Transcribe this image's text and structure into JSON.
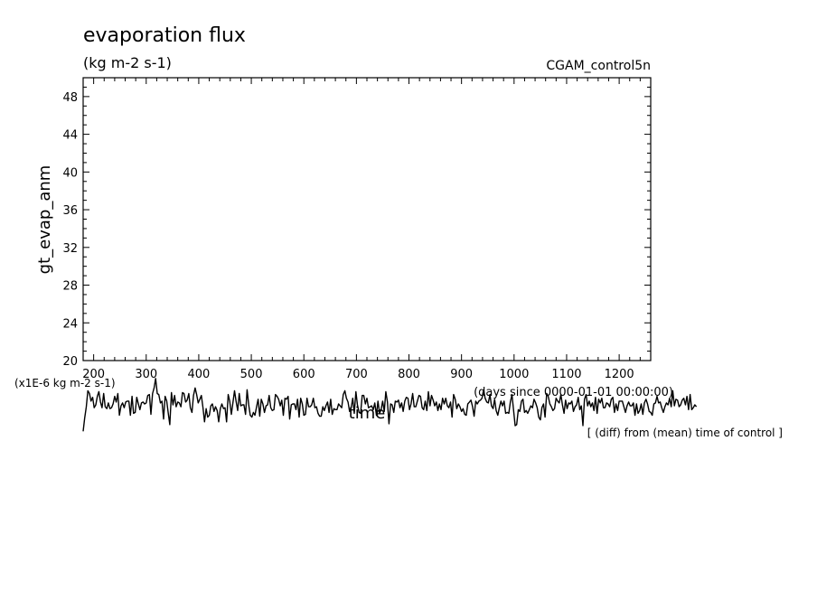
{
  "chart_data": {
    "type": "line",
    "title": "evaporation flux",
    "subtitle": "(kg m-2 s-1)",
    "case_label": "CGAM_control5n",
    "xlabel": "time",
    "x_units": "(days since 0000-01-01 00:00:00)",
    "ylabel": "gt_evap_anm",
    "y_scale_note": "(x1E-6 kg m-2 s-1)",
    "note": "[ (diff) from (mean) time of control ]",
    "xlim": [
      180,
      1260
    ],
    "ylim": [
      20,
      50
    ],
    "x_ticks": [
      200,
      300,
      400,
      500,
      600,
      700,
      800,
      900,
      1000,
      1100,
      1200
    ],
    "y_ticks": [
      20,
      24,
      28,
      32,
      36,
      40,
      44,
      48
    ],
    "grid": false,
    "series": [
      {
        "x_start": 180,
        "x_step": 3,
        "values": [
          12.5,
          13.9,
          15.1,
          16.8,
          16.5,
          15.7,
          16.1,
          15.0,
          15.3,
          16.2,
          16.7,
          15.6,
          15.0,
          16.5,
          15.1,
          14.9,
          15.5,
          14.9,
          15.0,
          15.4,
          16.2,
          15.6,
          16.5,
          14.2,
          15.2,
          15.5,
          15.0,
          15.6,
          15.7,
          15.7,
          14.2,
          16.2,
          14.4,
          14.5,
          16.1,
          15.4,
          14.8,
          15.5,
          15.6,
          15.4,
          15.5,
          16.3,
          16.4,
          14.3,
          16.5,
          17.1,
          18.1,
          16.5,
          16.4,
          15.5,
          15.7,
          13.8,
          16.2,
          15.7,
          14.4,
          13.2,
          16.6,
          15.3,
          16.3,
          15.1,
          15.6,
          15.5,
          15.1,
          16.6,
          16.5,
          15.6,
          15.8,
          16.5,
          15.0,
          14.5,
          16.3,
          17.1,
          16.4,
          15.5,
          15.9,
          16.3,
          15.0,
          13.5,
          14.9,
          14.0,
          14.2,
          15.2,
          15.4,
          14.6,
          15.1,
          14.7,
          13.5,
          14.9,
          15.4,
          14.9,
          15.0,
          13.5,
          16.4,
          15.7,
          14.3,
          15.5,
          16.8,
          15.7,
          14.7,
          16.5,
          15.2,
          15.3,
          15.3,
          14.3,
          16.9,
          15.3,
          14.2,
          14.0,
          14.5,
          14.2,
          15.1,
          15.9,
          14.1,
          15.9,
          15.4,
          14.5,
          15.2,
          15.3,
          16.3,
          15.0,
          14.7,
          14.8,
          16.4,
          16.2,
          15.9,
          15.2,
          15.8,
          14.2,
          16.0,
          15.9,
          16.2,
          13.8,
          15.3,
          15.4,
          15.4,
          14.8,
          15.9,
          14.0,
          16.0,
          15.4,
          14.2,
          14.3,
          16.0,
          15.1,
          15.1,
          15.3,
          16.0,
          15.0,
          15.1,
          14.4,
          14.1,
          14.1,
          15.1,
          14.7,
          15.2,
          15.6,
          14.5,
          15.9,
          14.3,
          14.9,
          14.8,
          14.8,
          15.4,
          15.2,
          15.0,
          16.4,
          16.8,
          16.0,
          15.6,
          14.6,
          15.0,
          16.0,
          14.4,
          16.7,
          15.3,
          14.5,
          14.4,
          16.3,
          16.3,
          15.4,
          16.0,
          15.0,
          15.1,
          15.2,
          14.8,
          15.5,
          14.2,
          15.7,
          14.4,
          14.8,
          15.7,
          14.6,
          16.7,
          15.6,
          13.3,
          15.4,
          15.3,
          14.5,
          15.7,
          15.6,
          15.8,
          15.0,
          15.5,
          14.6,
          15.7,
          16.1,
          16.0,
          14.8,
          15.4,
          16.5,
          15.1,
          15.1,
          15.7,
          16.3,
          16.2,
          15.0,
          14.8,
          15.7,
          14.7,
          16.7,
          15.2,
          16.3,
          15.8,
          15.2,
          15.6,
          14.7,
          15.4,
          14.8,
          16.0,
          15.4,
          16.0,
          15.2,
          15.0,
          15.6,
          14.0,
          16.4,
          15.9,
          14.9,
          15.4,
          15.1,
          14.6,
          14.9,
          14.3,
          14.2,
          15.4,
          15.6,
          15.8,
          15.1,
          14.1,
          15.7,
          15.4,
          15.7,
          15.8,
          16.0,
          16.9,
          16.0,
          15.6,
          15.5,
          16.4,
          15.2,
          14.9,
          15.9,
          14.7,
          14.2,
          15.0,
          15.7,
          15.2,
          15.7,
          14.4,
          14.5,
          14.4,
          15.6,
          16.4,
          14.8,
          13.1,
          13.2,
          14.8,
          14.6,
          15.7,
          15.9,
          14.5,
          14.7,
          14.4,
          14.8,
          15.2,
          15.0,
          15.9,
          15.5,
          15.0,
          14.0,
          13.7,
          15.0,
          15.4,
          14.0,
          16.5,
          16.2,
          15.4,
          15.1,
          14.7,
          14.9,
          16.0,
          15.7,
          15.5,
          16.4,
          15.3,
          14.4,
          15.8,
          14.9,
          15.5,
          15.4,
          15.7,
          14.6,
          15.1,
          15.3,
          16.1,
          14.8,
          15.2,
          13.1,
          15.9,
          16.4,
          15.2,
          15.7,
          15.1,
          15.5,
          14.7,
          16.1,
          14.4,
          15.9,
          15.5,
          16.0,
          15.0,
          15.0,
          15.5,
          15.4,
          15.1,
          15.9,
          16.1,
          14.5,
          15.4,
          14.7,
          15.7,
          15.7,
          15.7,
          15.1,
          14.5,
          15.2,
          15.6,
          15.2,
          15.2,
          15.5,
          14.2,
          15.4,
          14.4,
          14.7,
          15.4,
          14.3,
          15.5,
          15.9,
          15.4,
          14.6,
          14.5,
          14.2,
          15.4,
          15.5,
          16.2,
          15.5,
          15.6,
          15.0,
          14.5,
          15.1,
          15.5,
          15.3,
          16.0,
          15.1,
          16.8,
          15.2,
          15.9,
          15.8,
          15.1,
          15.3,
          15.8,
          16.0,
          15.3,
          16.2,
          14.8,
          16.4,
          14.8,
          15.0,
          15.3,
          15.1
        ]
      }
    ]
  }
}
